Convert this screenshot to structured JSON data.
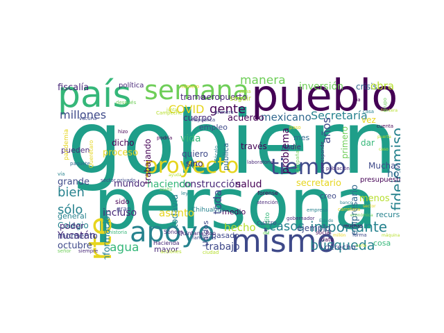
{
  "palette": {
    "dark_purple": "#440154",
    "purple": "#482878",
    "indigo": "#3e4989",
    "blue": "#31688e",
    "teal": "#26828e",
    "green_teal": "#1f9e89",
    "green": "#35b779",
    "light_green": "#6ece58",
    "yellow_green": "#b5de2b",
    "yellow": "#e6d51f"
  },
  "words": [
    {
      "text": "gobierno",
      "color": "#1f9e89"
    },
    {
      "text": "persona",
      "color": "#1f9e89"
    },
    {
      "text": "pueblo",
      "color": "#440154"
    },
    {
      "text": "país",
      "color": "#35b779"
    },
    {
      "text": "semana",
      "color": "#6ece58"
    },
    {
      "text": "mismo",
      "color": "#3e4989"
    },
    {
      "text": "apoyo",
      "color": "#26828e"
    },
    {
      "text": "parte",
      "color": "#e6d51f"
    },
    {
      "text": "proyecto",
      "color": "#e6d51f"
    },
    {
      "text": "tiempo",
      "color": "#3e4989"
    },
    {
      "text": "manera",
      "color": "#6ece58"
    },
    {
      "text": "inversión",
      "color": "#6ece58"
    },
    {
      "text": "crisis",
      "color": "#31688e"
    },
    {
      "text": "obra",
      "color": "#b5de2b"
    },
    {
      "text": "fiscalía",
      "color": "#482878"
    },
    {
      "text": "política",
      "color": "#482878"
    },
    {
      "text": "millones",
      "color": "#3e4989"
    },
    {
      "text": "COVID",
      "color": "#e6d51f"
    },
    {
      "text": "gente",
      "color": "#440154"
    },
    {
      "text": "Secretaría",
      "color": "#26828e"
    },
    {
      "text": "tramo",
      "color": "#482878"
    },
    {
      "text": "aeropuerto",
      "color": "#482878"
    },
    {
      "text": "mexicano",
      "color": "#31688e"
    },
    {
      "text": "acuerdo",
      "color": "#440154"
    },
    {
      "text": "años",
      "color": "#3e4989"
    },
    {
      "text": "cuerpo",
      "color": "#482878"
    },
    {
      "text": "seguir",
      "color": "#b5de2b"
    },
    {
      "text": "fideicomiso",
      "color": "#26828e"
    },
    {
      "text": "importante",
      "color": "#26828e"
    },
    {
      "text": "búsqueda",
      "color": "#26828e"
    },
    {
      "text": "casos",
      "color": "#26828e"
    },
    {
      "text": "construcción",
      "color": "#482878"
    },
    {
      "text": "salud",
      "color": "#440154"
    },
    {
      "text": "hecho",
      "color": "#b5de2b"
    },
    {
      "text": "agua",
      "color": "#35b779"
    },
    {
      "text": "trabajo",
      "color": "#3e4989"
    },
    {
      "text": "sólo",
      "color": "#26828e"
    },
    {
      "text": "bien",
      "color": "#26828e"
    },
    {
      "text": "grande",
      "color": "#3e4989"
    },
    {
      "text": "incluso",
      "color": "#482878"
    },
    {
      "text": "proceso",
      "color": "#e6d51f"
    },
    {
      "text": "haciendo",
      "color": "#35b779"
    },
    {
      "text": "mundo",
      "color": "#482878"
    },
    {
      "text": "todavía",
      "color": "#26828e"
    },
    {
      "text": "toda",
      "color": "#3e4989"
    },
    {
      "text": "vida",
      "color": "#35b779"
    },
    {
      "text": "hoy",
      "color": "#31688e"
    },
    {
      "text": "Muchas",
      "color": "#3e4989"
    },
    {
      "text": "empresario",
      "color": "#31688e"
    },
    {
      "text": "menos",
      "color": "#b5de2b"
    },
    {
      "text": "secretario",
      "color": "#e6d51f"
    },
    {
      "text": "asunto",
      "color": "#e6d51f"
    },
    {
      "text": "problema",
      "color": "#440154"
    },
    {
      "text": "mes",
      "color": "#31688e"
    },
    {
      "text": "ir",
      "color": "#35b779"
    },
    {
      "text": "dar",
      "color": "#35b779"
    },
    {
      "text": "primero",
      "color": "#6ece58"
    },
    {
      "text": "vez",
      "color": "#e6d51f"
    },
    {
      "text": "Yucatán",
      "color": "#482878"
    },
    {
      "text": "octubre",
      "color": "#3e4989"
    },
    {
      "text": "Colegio",
      "color": "#26828e"
    },
    {
      "text": "general",
      "color": "#26828e"
    },
    {
      "text": "poder",
      "color": "#482878"
    },
    {
      "text": "momento",
      "color": "#3e4989"
    },
    {
      "text": "información",
      "color": "#26828e"
    },
    {
      "text": "dicho",
      "color": "#440154"
    },
    {
      "text": "pueden",
      "color": "#482878"
    },
    {
      "text": "empleo",
      "color": "#3e4989"
    },
    {
      "text": "trabajando",
      "color": "#440154"
    },
    {
      "text": "quiero",
      "color": "#3e4989"
    },
    {
      "text": "sino",
      "color": "#482878"
    },
    {
      "text": "través",
      "color": "#440154"
    },
    {
      "text": "pública",
      "color": "#31688e"
    },
    {
      "text": "ejemplo",
      "color": "#3e4989"
    },
    {
      "text": "creo",
      "color": "#3e4989"
    },
    {
      "text": "recurso",
      "color": "#26828e"
    },
    {
      "text": "pasado",
      "color": "#3e4989"
    },
    {
      "text": "medio",
      "color": "#440154"
    },
    {
      "text": "mayor",
      "color": "#482878"
    },
    {
      "text": "derecho",
      "color": "#3e4989"
    },
    {
      "text": "cosa",
      "color": "#35b779"
    },
    {
      "text": "presupuesto",
      "color": "#440154"
    },
    {
      "text": "nadie",
      "color": "#482878"
    },
    {
      "text": "sido",
      "color": "#440154"
    },
    {
      "text": "Unidos",
      "color": "#3e4989"
    },
    {
      "text": "gran",
      "color": "#3e4989"
    },
    {
      "text": "cuatro",
      "color": "#3e4989"
    },
    {
      "text": "crédito",
      "color": "#35b779"
    },
    {
      "text": "forense",
      "color": "#440154"
    },
    {
      "text": "social",
      "color": "#440154"
    },
    {
      "text": "dato",
      "color": "#440154"
    },
    {
      "text": "Chihuahua",
      "color": "#26828e"
    },
    {
      "text": "Sonora",
      "color": "#482878"
    },
    {
      "text": "Quintana Roo",
      "color": "#482878"
    },
    {
      "text": "Hacienda",
      "color": "#482878"
    },
    {
      "text": "pandemia",
      "color": "#e6d51f"
    },
    {
      "text": "vacuna",
      "color": "#3e4989"
    },
    {
      "text": "después",
      "color": "#6ece58"
    },
    {
      "text": "hizo",
      "color": "#440154"
    },
    {
      "text": "podría",
      "color": "#440154"
    },
    {
      "text": "paquete",
      "color": "#31688e"
    },
    {
      "text": "sector privado",
      "color": "#3e4989"
    },
    {
      "text": "laboratorio",
      "color": "#482878"
    },
    {
      "text": "Querétaro",
      "color": "#e6d51f"
    },
    {
      "text": "Zócalo",
      "color": "#26828e"
    },
    {
      "text": "campaña",
      "color": "#6ece58"
    },
    {
      "text": "población",
      "color": "#482878"
    },
    {
      "text": "corresponde",
      "color": "#482878"
    },
    {
      "text": "gobernador",
      "color": "#482878"
    },
    {
      "text": "atención",
      "color": "#482878"
    },
    {
      "text": "empresa",
      "color": "#26828e"
    },
    {
      "text": "carretera",
      "color": "#e6d51f"
    },
    {
      "text": "forma",
      "color": "#3e4989"
    },
    {
      "text": "cuenta",
      "color": "#440154"
    },
    {
      "text": "iba",
      "color": "#440154"
    },
    {
      "text": "República",
      "color": "#3e4989"
    },
    {
      "text": "paso",
      "color": "#e6d51f"
    },
    {
      "text": "siempre",
      "color": "#482878"
    },
    {
      "text": "Campeche",
      "color": "#b5de2b"
    },
    {
      "text": "número",
      "color": "#e6d51f"
    },
    {
      "text": "zona",
      "color": "#b5de2b"
    },
    {
      "text": "señor",
      "color": "#6ece58"
    },
    {
      "text": "casa",
      "color": "#26828e"
    },
    {
      "text": "ley",
      "color": "#26828e"
    },
    {
      "text": "primera",
      "color": "#3e4989"
    },
    {
      "text": "historia",
      "color": "#35b779"
    },
    {
      "text": "muchas",
      "color": "#440154"
    },
    {
      "text": "familiares",
      "color": "#3e4989"
    },
    {
      "text": "acciones",
      "color": "#b5de2b"
    },
    {
      "text": "ciudad",
      "color": "#b5de2b"
    },
    {
      "text": "vía",
      "color": "#26828e"
    },
    {
      "text": "junta",
      "color": "#b5de2b"
    },
    {
      "text": "económica",
      "color": "#6ece58"
    },
    {
      "text": "frontera",
      "color": "#b5de2b"
    },
    {
      "text": "sector",
      "color": "#e6d51f"
    },
    {
      "text": "grupo",
      "color": "#6ece58"
    },
    {
      "text": "puerta",
      "color": "#b5de2b"
    },
    {
      "text": "máquina",
      "color": "#b5de2b"
    },
    {
      "text": "millón",
      "color": "#e6d51f"
    },
    {
      "text": "caso",
      "color": "#b5de2b"
    },
    {
      "text": "asalto",
      "color": "#6ece58"
    },
    {
      "text": "ayuda",
      "color": "#b5de2b"
    },
    {
      "text": "día",
      "color": "#6ece58"
    },
    {
      "text": "Estado",
      "color": "#26828e"
    },
    {
      "text": "banco",
      "color": "#26828e"
    },
    {
      "text": "corte",
      "color": "#b5de2b"
    }
  ]
}
